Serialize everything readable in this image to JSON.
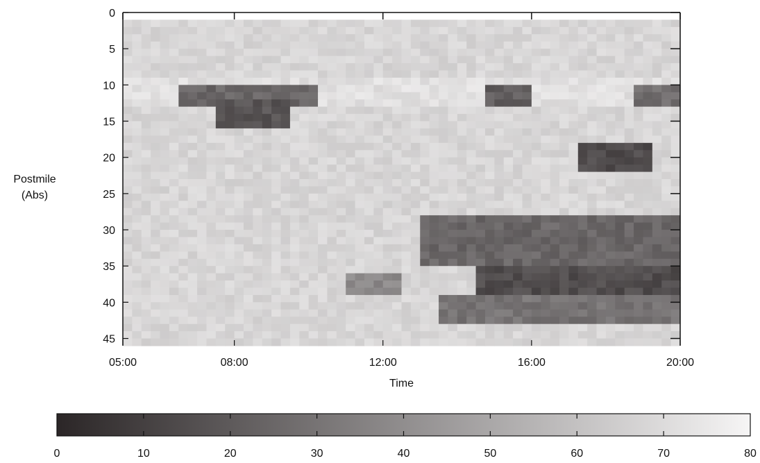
{
  "chart_data": {
    "type": "heatmap",
    "xlabel": "Time",
    "ylabel": [
      "Postmile",
      "(Abs)"
    ],
    "x_ticks": [
      "05:00",
      "08:00",
      "12:00",
      "16:00",
      "20:00"
    ],
    "x_tick_hours": [
      5,
      8,
      12,
      16,
      20
    ],
    "xlim_hours": [
      5,
      20
    ],
    "y_ticks": [
      0,
      5,
      10,
      15,
      20,
      25,
      30,
      35,
      40,
      45
    ],
    "ylim": [
      0,
      46
    ],
    "y_reversed": true,
    "colorbar": {
      "ticks": [
        0,
        10,
        20,
        30,
        40,
        50,
        60,
        70,
        80
      ],
      "range": [
        0,
        80
      ],
      "colors": [
        "#2b2627",
        "#f6f5f5"
      ]
    },
    "grid_resolution": {
      "time_step_minutes": 15,
      "postmile_step": 1
    },
    "values_description_level_background": 68,
    "congestion_regions": [
      {
        "t_start": "06:30",
        "t_end": "10:15",
        "pm_start": 10,
        "pm_end": 13,
        "speed": 25
      },
      {
        "t_start": "07:30",
        "t_end": "09:30",
        "pm_start": 12,
        "pm_end": 15.5,
        "speed": 18
      },
      {
        "t_start": "14:45",
        "t_end": "16:00",
        "pm_start": 10,
        "pm_end": 12.5,
        "speed": 22
      },
      {
        "t_start": "18:45",
        "t_end": "20:00",
        "pm_start": 10,
        "pm_end": 12.5,
        "speed": 28
      },
      {
        "t_start": "17:15",
        "t_end": "19:15",
        "pm_start": 18,
        "pm_end": 21.5,
        "speed": 15
      },
      {
        "t_start": "13:00",
        "t_end": "20:00",
        "pm_start": 28,
        "pm_end": 35,
        "speed": 25
      },
      {
        "t_start": "14:30",
        "t_end": "20:00",
        "pm_start": 35,
        "pm_end": 39,
        "speed": 15
      },
      {
        "t_start": "13:30",
        "t_end": "20:00",
        "pm_start": 39,
        "pm_end": 42.5,
        "speed": 30
      },
      {
        "t_start": "11:00",
        "t_end": "12:30",
        "pm_start": 36.5,
        "pm_end": 38.5,
        "speed": 38
      }
    ]
  }
}
